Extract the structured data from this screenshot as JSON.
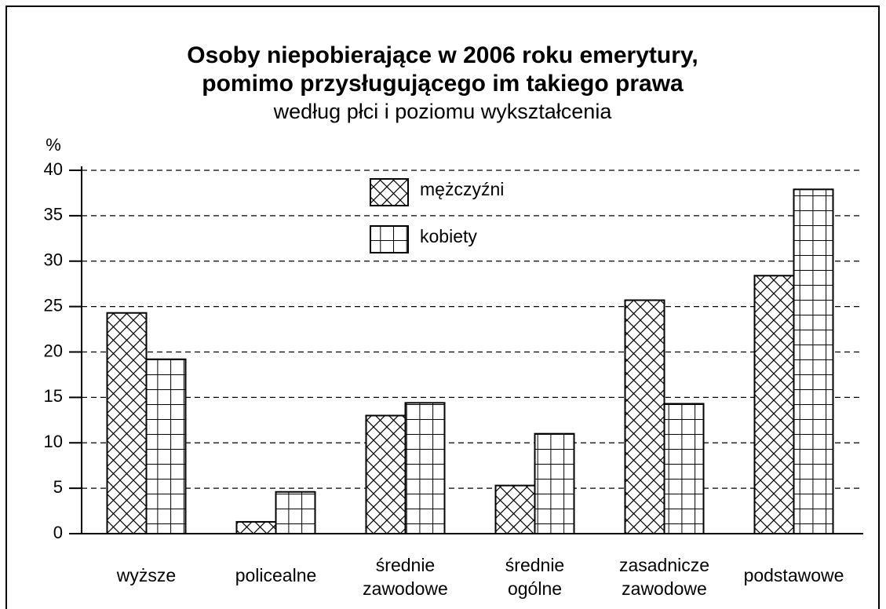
{
  "chart_data": {
    "type": "bar",
    "title": [
      "Osoby niepobierające w 2006 roku emerytury,",
      "pomimo przysługującego im takiego prawa"
    ],
    "subtitle": "według płci i poziomu wykształcenia",
    "y_label": "%",
    "categories": [
      "wyższe",
      "policealne",
      "średnie zawodowe",
      "średnie ogólne",
      "zasadnicze zawodowe",
      "podstawowe"
    ],
    "series": [
      {
        "name": "mężczyźni",
        "color": "#000000",
        "pattern": "crosshatch",
        "values": [
          24.3,
          1.3,
          13.0,
          5.3,
          25.7,
          28.4
        ]
      },
      {
        "name": "kobiety",
        "color": "#000000",
        "pattern": "grid",
        "values": [
          19.2,
          4.6,
          14.4,
          11.0,
          14.3,
          37.9
        ]
      }
    ],
    "ylim": [
      0,
      40
    ],
    "yticks": [
      0,
      5,
      10,
      15,
      20,
      25,
      30,
      35,
      40
    ],
    "grid": true
  }
}
